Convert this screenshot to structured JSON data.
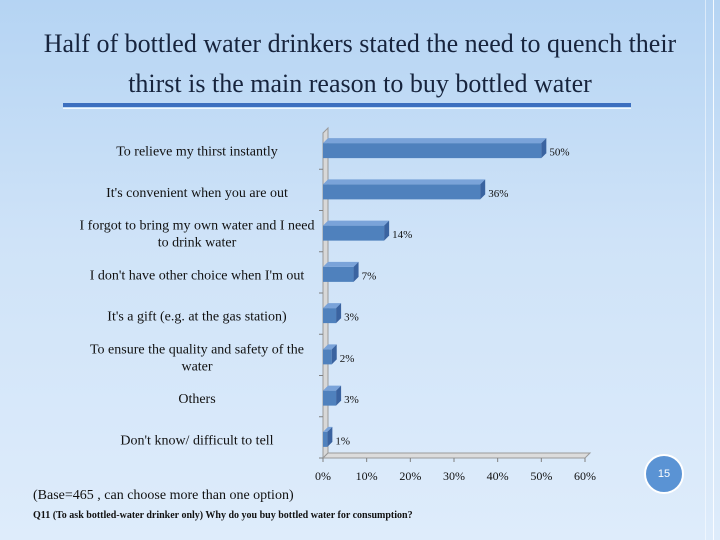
{
  "title": "Half of bottled water drinkers stated the need to quench their thirst is the main reason to buy bottled water",
  "page_number": "15",
  "base_note": "(Base=465 , can choose more than one option)",
  "question": "Q11 (To ask bottled-water drinker only) Why do you buy bottled water for consumption?",
  "colors": {
    "bar": "#4f81bd",
    "bar_side": "#3a63a0",
    "bar_top": "#7aa3d9",
    "accent": "#3c6fbf"
  },
  "chart_data": {
    "type": "bar",
    "orientation": "horizontal",
    "title": "Half of bottled water drinkers stated the need to quench their thirst is the main reason to buy bottled water",
    "categories": [
      [
        "To relieve my thirst instantly"
      ],
      [
        "It's convenient when you are out"
      ],
      [
        "I forgot to bring my own water and I need",
        "to drink water"
      ],
      [
        "I don't have other choice when I'm out"
      ],
      [
        "It's a gift (e.g. at the gas station)"
      ],
      [
        "To ensure the quality and safety of the",
        "water"
      ],
      [
        "Others"
      ],
      [
        "Don't know/ difficult to tell"
      ]
    ],
    "values": [
      50,
      36,
      14,
      7,
      3,
      2,
      3,
      1
    ],
    "value_labels": [
      "50%",
      "36%",
      "14%",
      "7%",
      "3%",
      "2%",
      "3%",
      "1%"
    ],
    "xlim": [
      0,
      60
    ],
    "x_ticks": [
      "0%",
      "10%",
      "20%",
      "30%",
      "40%",
      "50%",
      "60%"
    ],
    "grid": false,
    "legend": "none"
  }
}
